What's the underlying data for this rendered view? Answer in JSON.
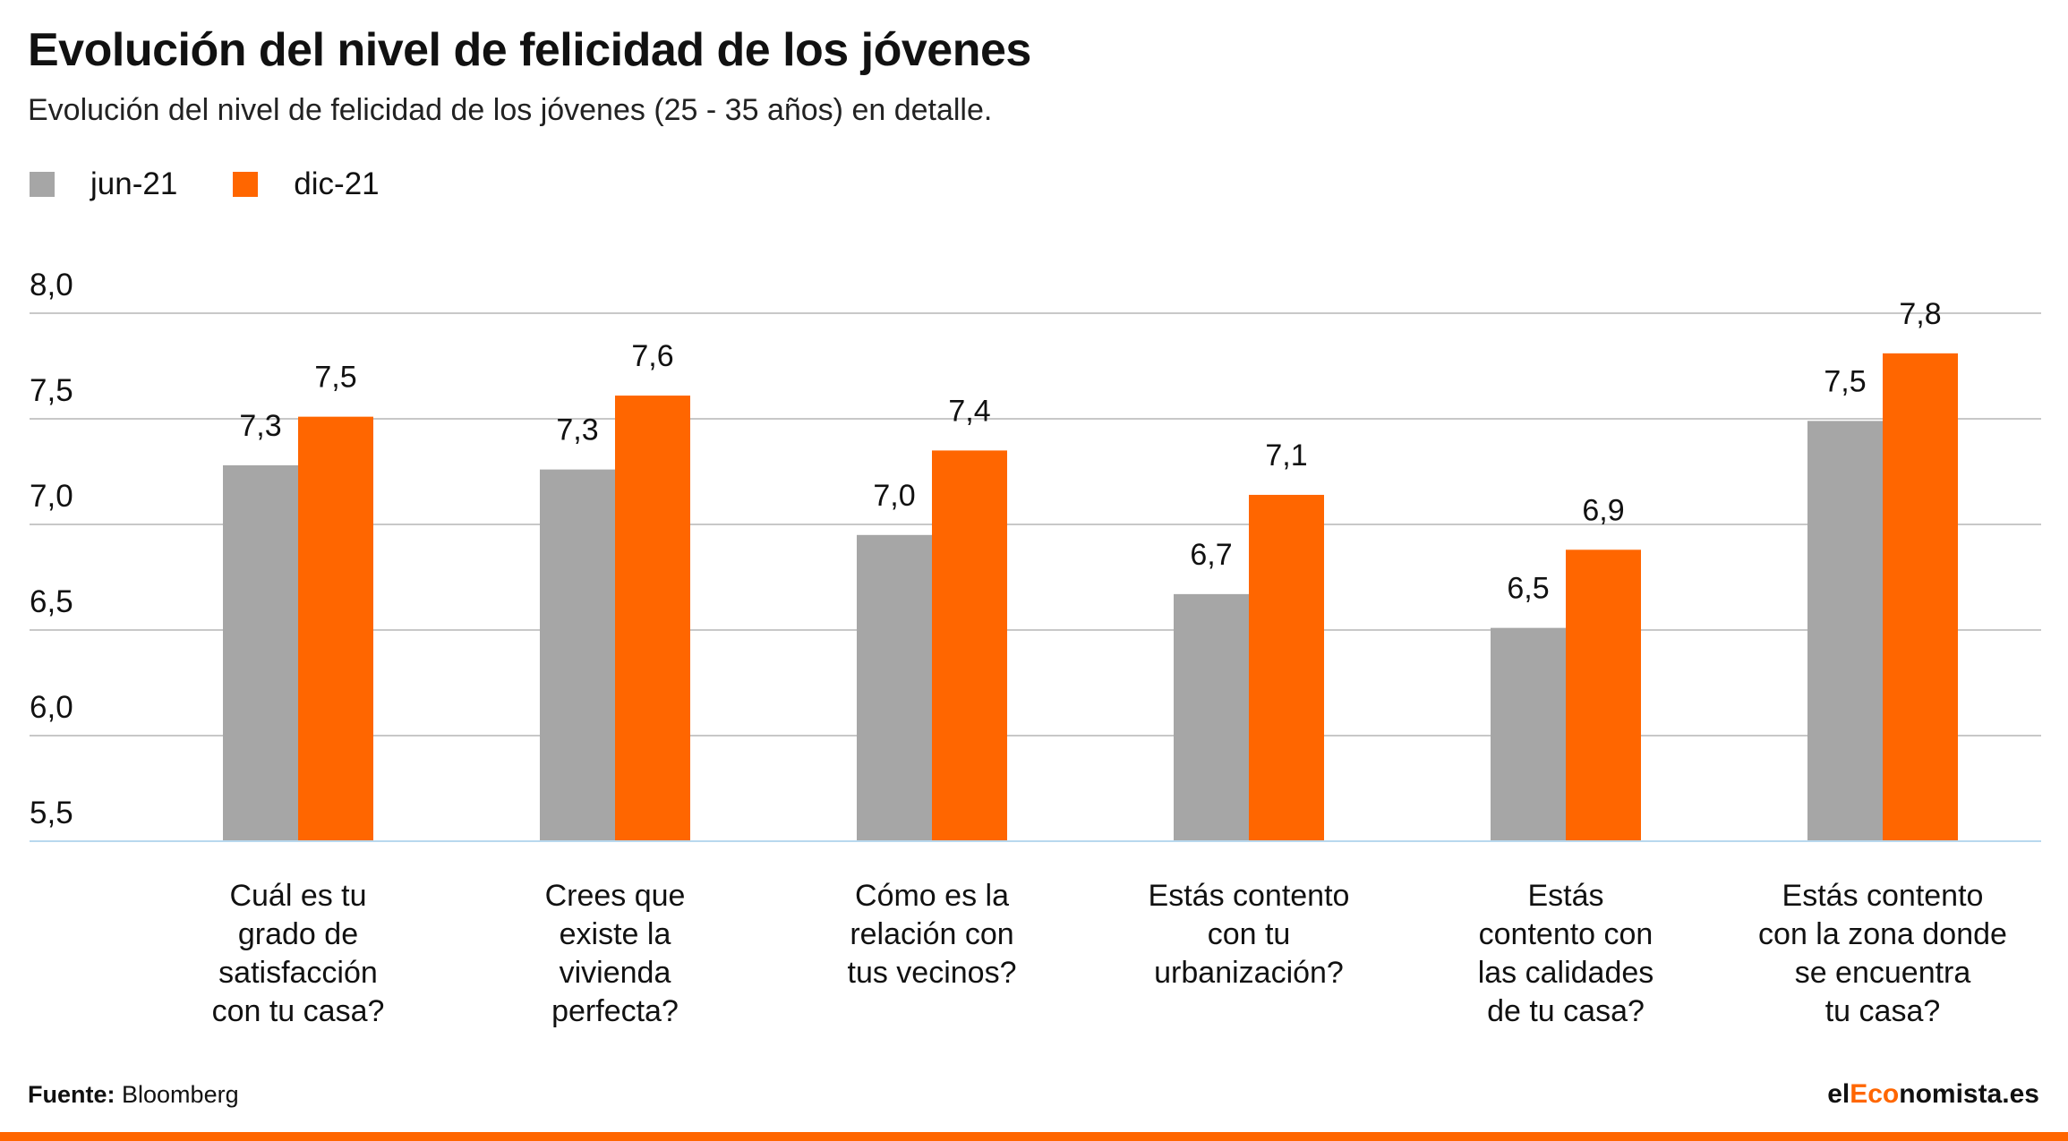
{
  "header": {
    "title": "Evolución del nivel de felicidad de los jóvenes",
    "subtitle": "Evolución del nivel de felicidad de los jóvenes (25 - 35 años) en detalle."
  },
  "colors": {
    "jun": "#a6a6a6",
    "dic": "#ff6600",
    "grid": "#c8c8c8",
    "baseline": "#b8d8ee",
    "text": "#111111"
  },
  "chart_data": {
    "type": "bar",
    "title": "Evolución del nivel de felicidad de los jóvenes",
    "subtitle": "Evolución del nivel de felicidad de los jóvenes (25 - 35 años) en detalle.",
    "categories": [
      [
        "Cuál es tu",
        "grado de",
        "satisfacción",
        "con tu casa?"
      ],
      [
        "Crees que",
        "existe la",
        "vivienda",
        "perfecta?"
      ],
      [
        "Cómo es la",
        "relación con",
        "tus vecinos?"
      ],
      [
        "Estás contento",
        "con tu",
        "urbanización?"
      ],
      [
        "Estás",
        "contento con",
        "las calidades",
        "de tu casa?"
      ],
      [
        "Estás contento",
        "con la zona donde",
        "se encuentra",
        "tu casa?"
      ]
    ],
    "series": [
      {
        "name": "jun-21",
        "values": [
          7.28,
          7.26,
          6.95,
          6.67,
          6.51,
          7.49
        ],
        "labels": [
          "7,3",
          "7,3",
          "7,0",
          "6,7",
          "6,5",
          "7,5"
        ]
      },
      {
        "name": "dic-21",
        "values": [
          7.51,
          7.61,
          7.35,
          7.14,
          6.88,
          7.81
        ],
        "labels": [
          "7,5",
          "7,6",
          "7,4",
          "7,1",
          "6,9",
          "7,8"
        ]
      }
    ],
    "yticks": [
      5.5,
      6.0,
      6.5,
      7.0,
      7.5,
      8.0
    ],
    "ytick_labels": [
      "5,5",
      "6,0",
      "6,5",
      "7,0",
      "7,5",
      "8,0"
    ],
    "ylim": [
      5.5,
      8.0
    ],
    "xlabel": "",
    "ylabel": "",
    "grid": true,
    "legend": "top-left"
  },
  "footer": {
    "source_label": "Fuente:",
    "source_value": "Bloomberg",
    "brand_prefix": "el",
    "brand_highlight": "Eco",
    "brand_suffix": "nomista.es"
  }
}
